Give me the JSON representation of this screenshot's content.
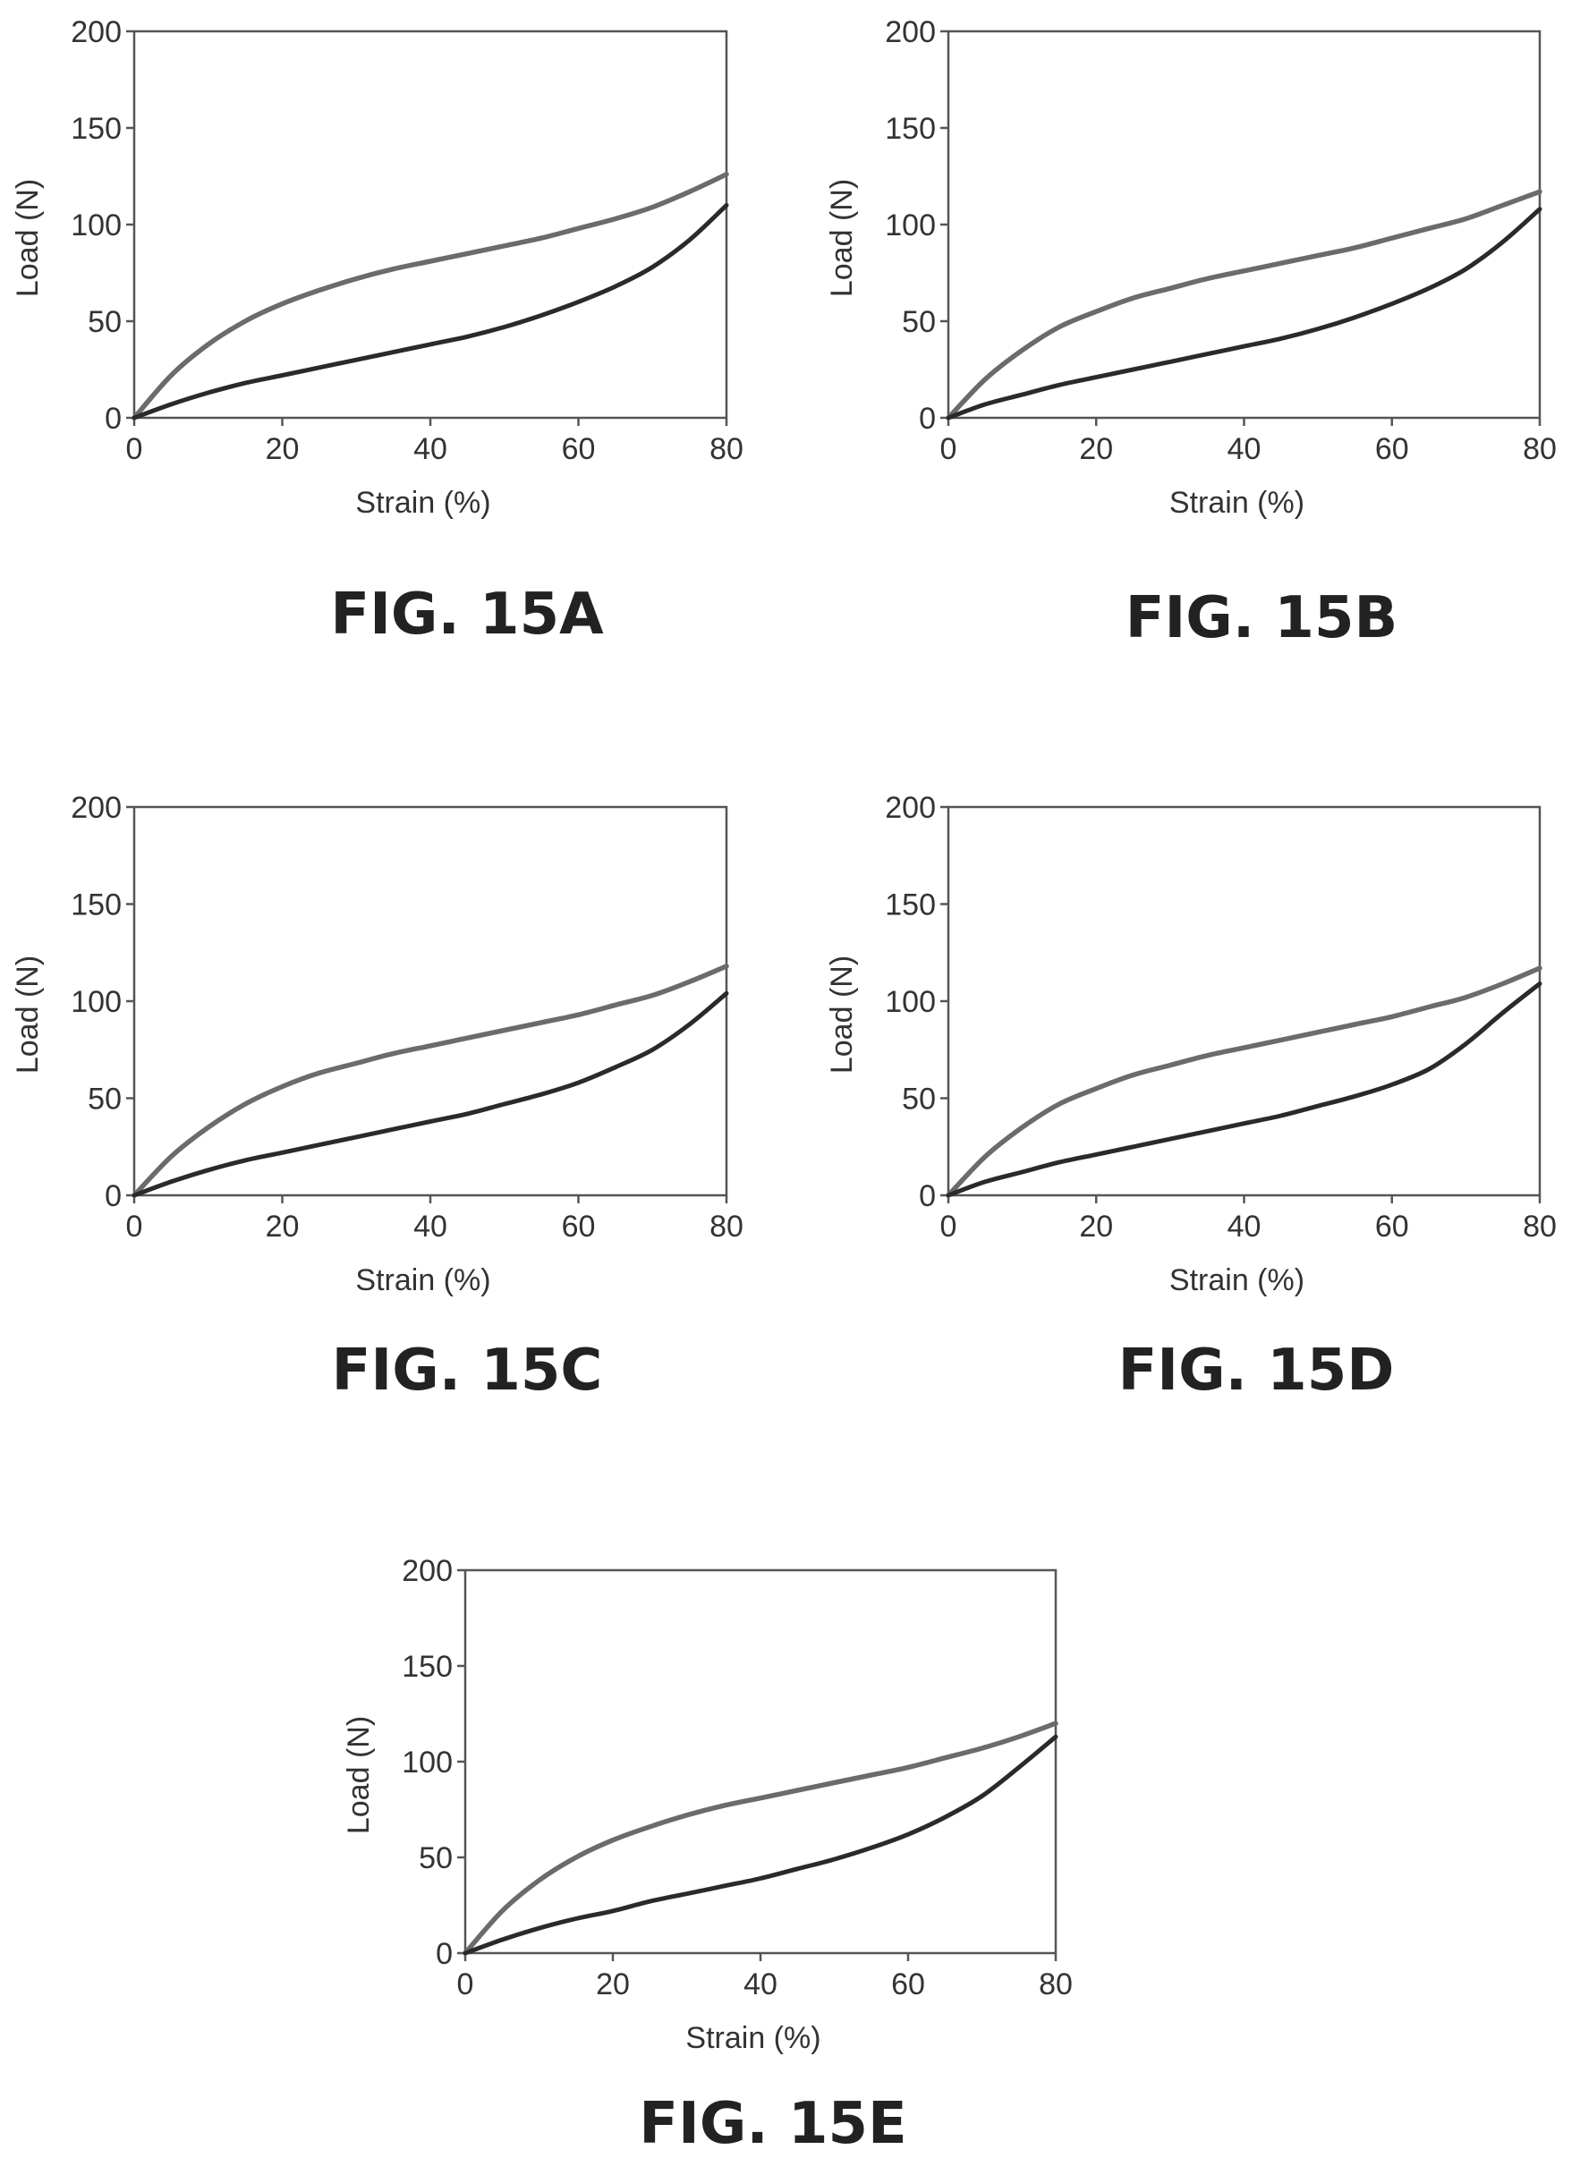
{
  "chart_data": [
    {
      "id": "15A",
      "type": "line",
      "caption": "FIG. 15A",
      "xlabel": "Strain (%)",
      "ylabel": "Load (N)",
      "xlim": [
        0,
        80
      ],
      "ylim": [
        0,
        200
      ],
      "xticks": [
        0,
        20,
        40,
        60,
        80
      ],
      "yticks": [
        0,
        50,
        100,
        150,
        200
      ],
      "grid": false,
      "series": [
        {
          "color": "#6b6b6b",
          "x": [
            0,
            5,
            10,
            15,
            20,
            25,
            30,
            35,
            40,
            45,
            50,
            55,
            60,
            65,
            70,
            75,
            80
          ],
          "y": [
            0,
            22,
            38,
            50,
            59,
            66,
            72,
            77,
            81,
            85,
            89,
            93,
            98,
            103,
            109,
            117,
            126
          ]
        },
        {
          "color": "#2a2a2a",
          "x": [
            0,
            5,
            10,
            15,
            20,
            25,
            30,
            35,
            40,
            45,
            50,
            55,
            60,
            65,
            70,
            75,
            80
          ],
          "y": [
            0,
            7,
            13,
            18,
            22,
            26,
            30,
            34,
            38,
            42,
            47,
            53,
            60,
            68,
            78,
            92,
            110
          ]
        }
      ]
    },
    {
      "id": "15B",
      "type": "line",
      "caption": "FIG. 15B",
      "xlabel": "Strain (%)",
      "ylabel": "Load (N)",
      "xlim": [
        0,
        80
      ],
      "ylim": [
        0,
        200
      ],
      "xticks": [
        0,
        20,
        40,
        60,
        80
      ],
      "yticks": [
        0,
        50,
        100,
        150,
        200
      ],
      "grid": false,
      "series": [
        {
          "color": "#6b6b6b",
          "x": [
            0,
            5,
            10,
            15,
            20,
            25,
            30,
            35,
            40,
            45,
            50,
            55,
            60,
            65,
            70,
            75,
            80
          ],
          "y": [
            0,
            20,
            35,
            47,
            55,
            62,
            67,
            72,
            76,
            80,
            84,
            88,
            93,
            98,
            103,
            110,
            117
          ]
        },
        {
          "color": "#2a2a2a",
          "x": [
            0,
            5,
            10,
            15,
            20,
            25,
            30,
            35,
            40,
            45,
            50,
            55,
            60,
            65,
            70,
            75,
            80
          ],
          "y": [
            0,
            7,
            12,
            17,
            21,
            25,
            29,
            33,
            37,
            41,
            46,
            52,
            59,
            67,
            77,
            91,
            108
          ]
        }
      ]
    },
    {
      "id": "15C",
      "type": "line",
      "caption": "FIG. 15C",
      "xlabel": "Strain (%)",
      "ylabel": "Load (N)",
      "xlim": [
        0,
        80
      ],
      "ylim": [
        0,
        200
      ],
      "xticks": [
        0,
        20,
        40,
        60,
        80
      ],
      "yticks": [
        0,
        50,
        100,
        150,
        200
      ],
      "grid": false,
      "series": [
        {
          "color": "#6b6b6b",
          "x": [
            0,
            5,
            10,
            15,
            20,
            25,
            30,
            35,
            40,
            45,
            50,
            55,
            60,
            65,
            70,
            75,
            80
          ],
          "y": [
            0,
            20,
            35,
            47,
            56,
            63,
            68,
            73,
            77,
            81,
            85,
            89,
            93,
            98,
            103,
            110,
            118
          ]
        },
        {
          "color": "#2a2a2a",
          "x": [
            0,
            5,
            10,
            15,
            20,
            25,
            30,
            35,
            40,
            45,
            50,
            55,
            60,
            65,
            70,
            75,
            80
          ],
          "y": [
            0,
            7,
            13,
            18,
            22,
            26,
            30,
            34,
            38,
            42,
            47,
            52,
            58,
            66,
            75,
            88,
            104
          ]
        }
      ]
    },
    {
      "id": "15D",
      "type": "line",
      "caption": "FIG. 15D",
      "xlabel": "Strain (%)",
      "ylabel": "Load (N)",
      "xlim": [
        0,
        80
      ],
      "ylim": [
        0,
        200
      ],
      "xticks": [
        0,
        20,
        40,
        60,
        80
      ],
      "yticks": [
        0,
        50,
        100,
        150,
        200
      ],
      "grid": false,
      "series": [
        {
          "color": "#6b6b6b",
          "x": [
            0,
            5,
            10,
            15,
            20,
            25,
            30,
            35,
            40,
            45,
            50,
            55,
            60,
            65,
            70,
            75,
            80
          ],
          "y": [
            0,
            20,
            35,
            47,
            55,
            62,
            67,
            72,
            76,
            80,
            84,
            88,
            92,
            97,
            102,
            109,
            117
          ]
        },
        {
          "color": "#2a2a2a",
          "x": [
            0,
            5,
            10,
            15,
            20,
            25,
            30,
            35,
            40,
            45,
            50,
            55,
            60,
            65,
            70,
            75,
            80
          ],
          "y": [
            0,
            7,
            12,
            17,
            21,
            25,
            29,
            33,
            37,
            41,
            46,
            51,
            57,
            65,
            78,
            94,
            109
          ]
        }
      ]
    },
    {
      "id": "15E",
      "type": "line",
      "caption": "FIG. 15E",
      "xlabel": "Strain (%)",
      "ylabel": "Load (N)",
      "xlim": [
        0,
        80
      ],
      "ylim": [
        0,
        200
      ],
      "xticks": [
        0,
        20,
        40,
        60,
        80
      ],
      "yticks": [
        0,
        50,
        100,
        150,
        200
      ],
      "grid": false,
      "series": [
        {
          "color": "#6b6b6b",
          "x": [
            0,
            5,
            10,
            15,
            20,
            25,
            30,
            35,
            40,
            45,
            50,
            55,
            60,
            65,
            70,
            75,
            80
          ],
          "y": [
            0,
            22,
            38,
            50,
            59,
            66,
            72,
            77,
            81,
            85,
            89,
            93,
            97,
            102,
            107,
            113,
            120
          ]
        },
        {
          "color": "#2a2a2a",
          "x": [
            0,
            5,
            10,
            15,
            20,
            25,
            30,
            35,
            40,
            45,
            50,
            55,
            60,
            65,
            70,
            75,
            80
          ],
          "y": [
            0,
            7,
            13,
            18,
            22,
            27,
            31,
            35,
            39,
            44,
            49,
            55,
            62,
            71,
            82,
            97,
            113
          ]
        }
      ]
    }
  ]
}
